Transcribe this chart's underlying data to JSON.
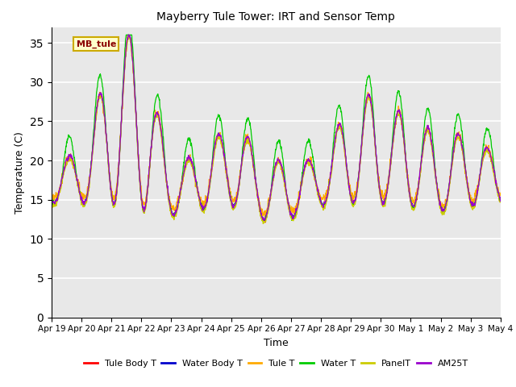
{
  "title": "Mayberry Tule Tower: IRT and Sensor Temp",
  "xlabel": "Time",
  "ylabel": "Temperature (C)",
  "ylim": [
    0,
    37
  ],
  "yticks": [
    0,
    5,
    10,
    15,
    20,
    25,
    30,
    35
  ],
  "legend_label": "MB_tule",
  "series_names": [
    "Tule Body T",
    "Water Body T",
    "Tule T",
    "Water T",
    "PanelT",
    "AM25T"
  ],
  "series_colors": [
    "#ff0000",
    "#0000cc",
    "#ffaa00",
    "#00cc00",
    "#cccc00",
    "#9900cc"
  ],
  "plot_bg_color": "#e8e8e8",
  "x_start": 0,
  "x_end": 15,
  "xtick_labels": [
    "Apr 19",
    "Apr 20",
    "Apr 21",
    "Apr 22",
    "Apr 23",
    "Apr 24",
    "Apr 25",
    "Apr 26",
    "Apr 27",
    "Apr 28",
    "Apr 29",
    "Apr 30",
    "May 1",
    "May 2",
    "May 3",
    "May 4"
  ],
  "xtick_positions": [
    0,
    1,
    2,
    3,
    4,
    5,
    6,
    7,
    8,
    9,
    10,
    11,
    12,
    13,
    14,
    15
  ]
}
